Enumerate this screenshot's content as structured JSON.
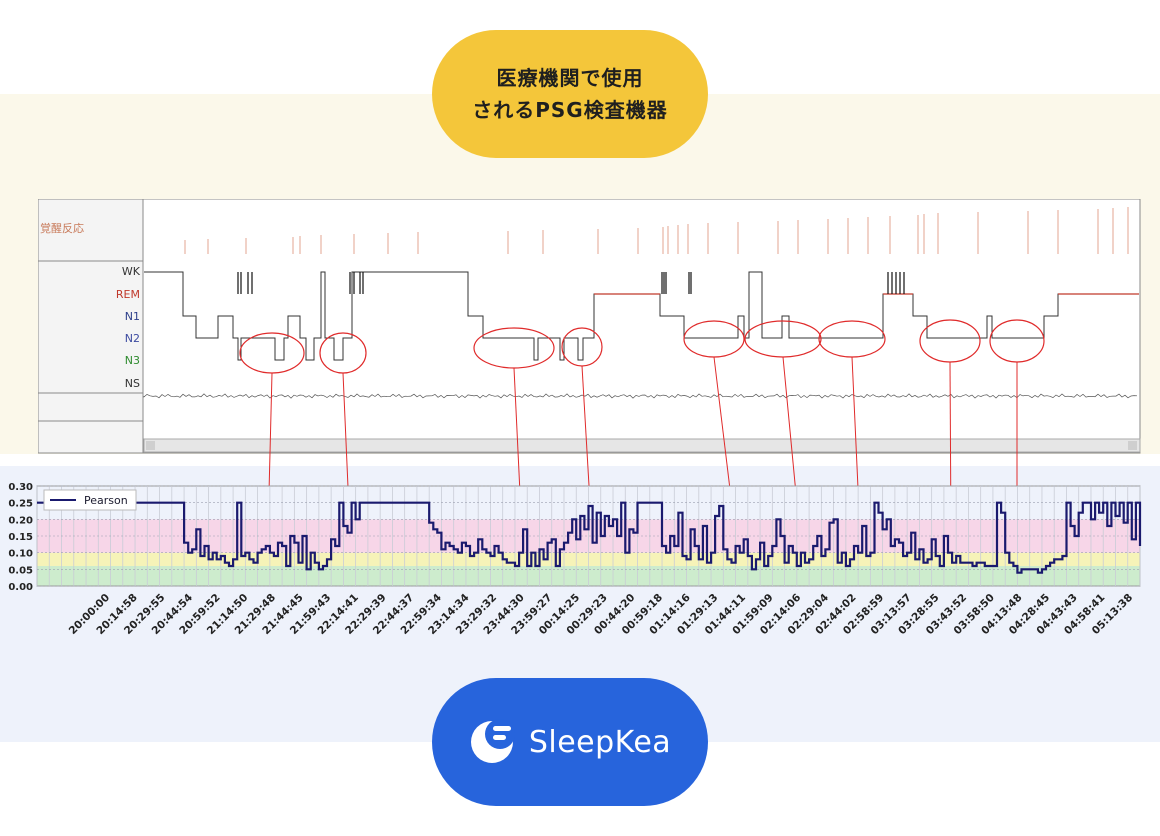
{
  "header_badge": {
    "line1": "医療機関で使用",
    "line2": "されるPSG検査機器"
  },
  "psg": {
    "arousal_label": "覚醒反応",
    "stage_labels": [
      "WK",
      "REM",
      "N1",
      "N2",
      "N3",
      "NS"
    ],
    "stage_colors": [
      "#333333",
      "#c0392b",
      "#2c3e8a",
      "#3c4aa0",
      "#2e8b2e",
      "#333333"
    ]
  },
  "chart_data": {
    "type": "line",
    "series": [
      {
        "name": "Pearson",
        "color": "#1a1a6e",
        "values": [
          0.25,
          0.25,
          0.25,
          0.25,
          0.25,
          0.25,
          0.25,
          0.25,
          0.25,
          0.25,
          0.25,
          0.25,
          0.25,
          0.25,
          0.25,
          0.25,
          0.25,
          0.25,
          0.25,
          0.25,
          0.25,
          0.25,
          0.25,
          0.25,
          0.25,
          0.25,
          0.25,
          0.25,
          0.25,
          0.25,
          0.25,
          0.25,
          0.25,
          0.25,
          0.25,
          0.25,
          0.13,
          0.1,
          0.11,
          0.17,
          0.09,
          0.12,
          0.08,
          0.1,
          0.08,
          0.09,
          0.07,
          0.06,
          0.08,
          0.25,
          0.09,
          0.1,
          0.08,
          0.07,
          0.1,
          0.11,
          0.12,
          0.1,
          0.09,
          0.13,
          0.12,
          0.06,
          0.15,
          0.13,
          0.07,
          0.15,
          0.05,
          0.1,
          0.07,
          0.05,
          0.06,
          0.08,
          0.14,
          0.12,
          0.25,
          0.18,
          0.16,
          0.25,
          0.2,
          0.25,
          0.25,
          0.25,
          0.25,
          0.25,
          0.25,
          0.25,
          0.25,
          0.25,
          0.25,
          0.25,
          0.25,
          0.25,
          0.25,
          0.25,
          0.25,
          0.25,
          0.19,
          0.17,
          0.16,
          0.11,
          0.13,
          0.12,
          0.11,
          0.1,
          0.13,
          0.12,
          0.09,
          0.1,
          0.14,
          0.11,
          0.1,
          0.09,
          0.12,
          0.1,
          0.08,
          0.07,
          0.07,
          0.06,
          0.1,
          0.17,
          0.06,
          0.1,
          0.06,
          0.11,
          0.08,
          0.13,
          0.14,
          0.06,
          0.11,
          0.13,
          0.16,
          0.2,
          0.14,
          0.21,
          0.17,
          0.24,
          0.13,
          0.22,
          0.15,
          0.21,
          0.18,
          0.2,
          0.15,
          0.25,
          0.1,
          0.17,
          0.16,
          0.25,
          0.25,
          0.25,
          0.25,
          0.25,
          0.25,
          0.12,
          0.1,
          0.15,
          0.12,
          0.22,
          0.09,
          0.08,
          0.17,
          0.12,
          0.08,
          0.18,
          0.07,
          0.1,
          0.21,
          0.24,
          0.11,
          0.08,
          0.07,
          0.12,
          0.1,
          0.14,
          0.09,
          0.05,
          0.08,
          0.13,
          0.06,
          0.09,
          0.12,
          0.2,
          0.15,
          0.07,
          0.12,
          0.1,
          0.06,
          0.1,
          0.07,
          0.08,
          0.12,
          0.15,
          0.09,
          0.11,
          0.19,
          0.2,
          0.07,
          0.1,
          0.06,
          0.08,
          0.12,
          0.1,
          0.18,
          0.09,
          0.1,
          0.25,
          0.22,
          0.17,
          0.2,
          0.12,
          0.14,
          0.13,
          0.09,
          0.1,
          0.16,
          0.08,
          0.11,
          0.07,
          0.08,
          0.14,
          0.09,
          0.06,
          0.15,
          0.1,
          0.07,
          0.09,
          0.07,
          0.07,
          0.07,
          0.06,
          0.07,
          0.07,
          0.06,
          0.06,
          0.06,
          0.25,
          0.22,
          0.1,
          0.07,
          0.06,
          0.04,
          0.05,
          0.05,
          0.05,
          0.05,
          0.04,
          0.05,
          0.06,
          0.07,
          0.08,
          0.08,
          0.09,
          0.25,
          0.18,
          0.15,
          0.22,
          0.25,
          0.25,
          0.2,
          0.25,
          0.22,
          0.25,
          0.18,
          0.25,
          0.21,
          0.25,
          0.19,
          0.25,
          0.14,
          0.25,
          0.12
        ]
      }
    ],
    "ylim": [
      0,
      0.3
    ],
    "yticks": [
      "0.00",
      "0.05",
      "0.10",
      "0.15",
      "0.20",
      "0.25",
      "0.30"
    ],
    "xticks": [
      "20:00:00",
      "20:14:58",
      "20:29:55",
      "20:44:54",
      "20:59:52",
      "21:14:50",
      "21:29:48",
      "21:44:45",
      "21:59:43",
      "22:14:41",
      "22:29:39",
      "22:44:37",
      "22:59:34",
      "23:14:34",
      "23:29:32",
      "23:44:30",
      "23:59:27",
      "00:14:25",
      "00:29:23",
      "00:44:20",
      "00:59:18",
      "01:14:16",
      "01:29:13",
      "01:44:11",
      "01:59:09",
      "02:14:06",
      "02:29:04",
      "02:44:02",
      "02:58:59",
      "03:13:57",
      "03:28:55",
      "03:43:52",
      "03:58:50",
      "04:13:48",
      "04:28:45",
      "04:43:43",
      "04:58:41",
      "05:13:38"
    ],
    "legend": "top-left",
    "background_bands": [
      {
        "from": 0.0,
        "to": 0.06,
        "color": "#cdeccd"
      },
      {
        "from": 0.06,
        "to": 0.1,
        "color": "#f6f3b8"
      },
      {
        "from": 0.1,
        "to": 0.2,
        "color": "#f7d6e8"
      },
      {
        "from": 0.2,
        "to": 0.3,
        "color": "#eef2fb"
      }
    ],
    "grid": true
  },
  "logo": {
    "brand": "SleepKea",
    "icon": "sleepkea-moon-icon"
  }
}
